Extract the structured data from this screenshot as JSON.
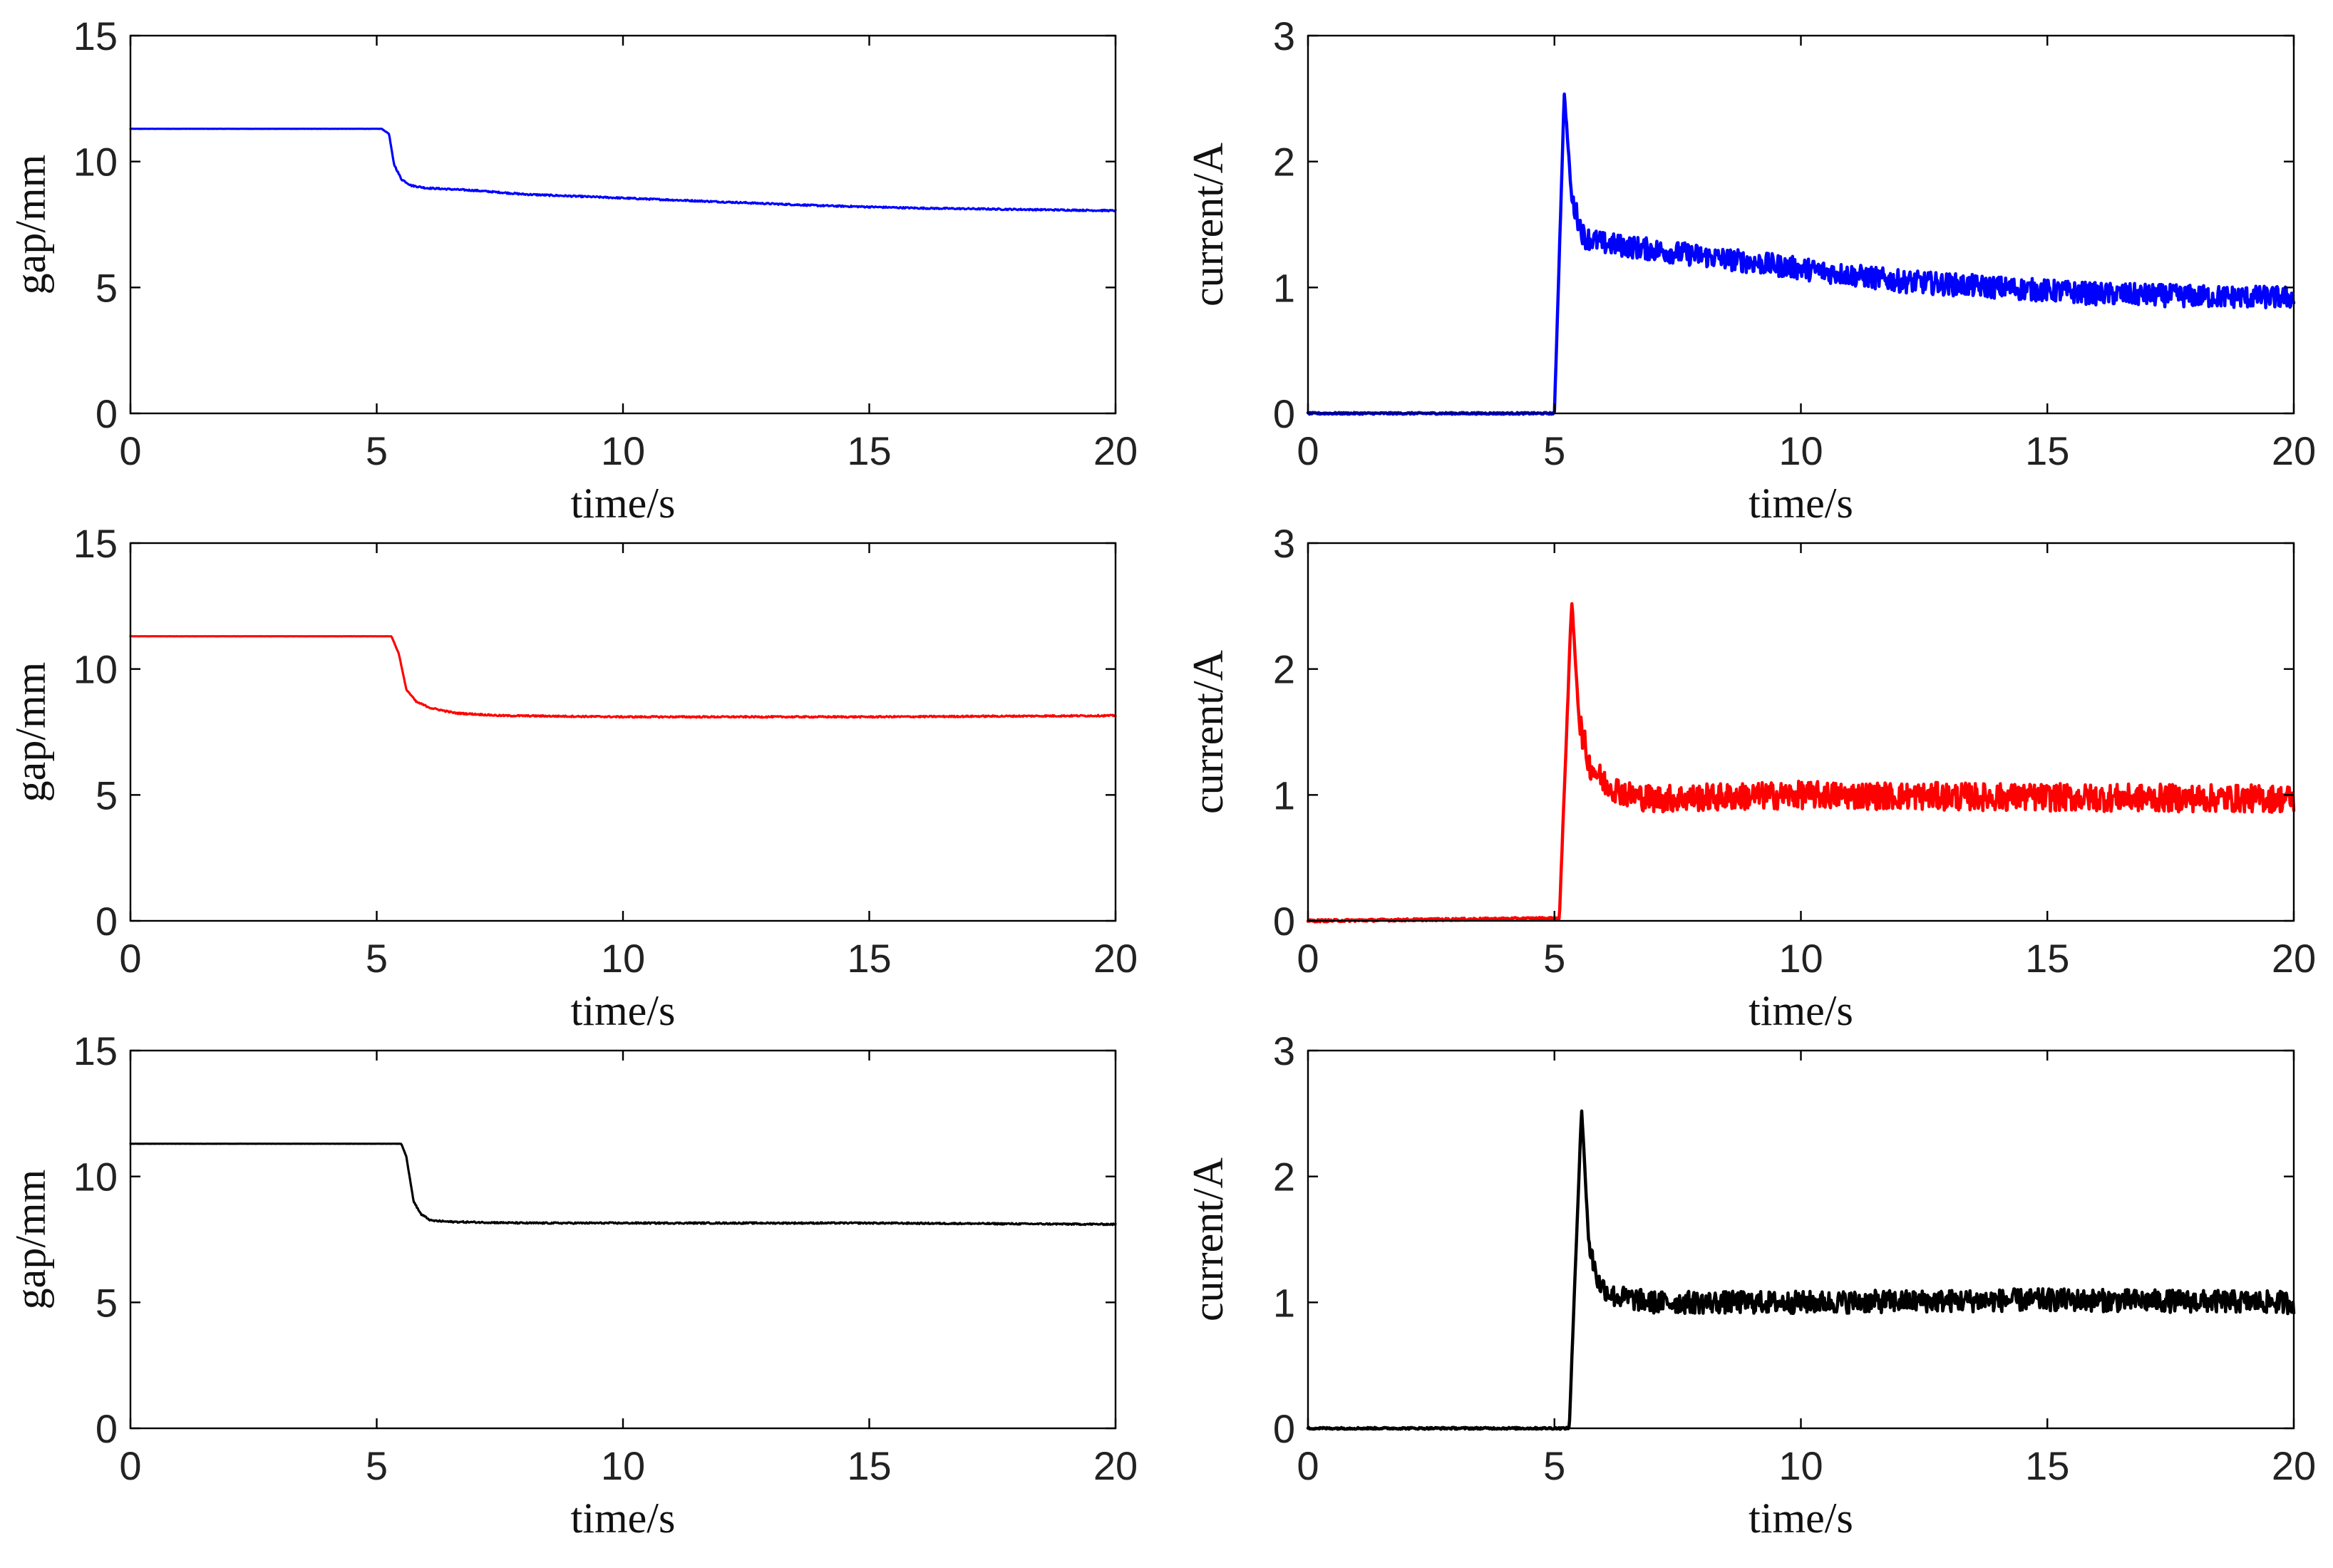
{
  "chart_data": [
    {
      "type": "line",
      "panel": "gap-blue",
      "xlabel": "time/s",
      "ylabel": "gap/mm",
      "xlim": [
        0,
        20
      ],
      "ylim": [
        0,
        15
      ],
      "xticks": [
        "0",
        "5",
        "10",
        "15",
        "20"
      ],
      "yticks": [
        "0",
        "5",
        "10",
        "15"
      ],
      "color": "#0000ff",
      "noise": 0.03,
      "series": [
        {
          "name": "gap",
          "x": [
            0,
            5.1,
            5.25,
            5.35,
            5.5,
            5.7,
            6.0,
            7.0,
            8.0,
            10.0,
            12.0,
            14.0,
            16.0,
            18.0,
            20.0
          ],
          "y": [
            11.3,
            11.3,
            11.1,
            9.9,
            9.3,
            9.05,
            8.95,
            8.85,
            8.7,
            8.55,
            8.4,
            8.25,
            8.15,
            8.1,
            8.05
          ]
        }
      ]
    },
    {
      "type": "line",
      "panel": "current-blue",
      "xlabel": "time/s",
      "ylabel": "current/A",
      "xlim": [
        0,
        20
      ],
      "ylim": [
        0,
        3
      ],
      "xticks": [
        "0",
        "5",
        "10",
        "15",
        "20"
      ],
      "yticks": [
        "0",
        "1",
        "2",
        "3"
      ],
      "color": "#0000ff",
      "noise": 0.09,
      "series": [
        {
          "name": "current",
          "x": [
            0,
            5.0,
            5.2,
            5.35,
            5.6,
            6.0,
            8.0,
            10.0,
            12.0,
            14.0,
            16.0,
            18.0,
            20.0
          ],
          "y": [
            0,
            0,
            2.55,
            1.7,
            1.4,
            1.35,
            1.25,
            1.15,
            1.05,
            1.0,
            0.95,
            0.93,
            0.92
          ]
        }
      ]
    },
    {
      "type": "line",
      "panel": "gap-red",
      "xlabel": "time/s",
      "ylabel": "gap/mm",
      "xlim": [
        0,
        20
      ],
      "ylim": [
        0,
        15
      ],
      "xticks": [
        "0",
        "5",
        "10",
        "15",
        "20"
      ],
      "yticks": [
        "0",
        "5",
        "10",
        "15"
      ],
      "color": "#ff0000",
      "noise": 0.03,
      "series": [
        {
          "name": "gap",
          "x": [
            0,
            5.3,
            5.45,
            5.6,
            5.8,
            6.1,
            6.6,
            7.5,
            10.0,
            15.0,
            20.0
          ],
          "y": [
            11.3,
            11.3,
            10.6,
            9.2,
            8.7,
            8.45,
            8.25,
            8.15,
            8.1,
            8.1,
            8.15
          ]
        }
      ]
    },
    {
      "type": "line",
      "panel": "current-red",
      "xlabel": "time/s",
      "ylabel": "current/A",
      "xlim": [
        0,
        20
      ],
      "ylim": [
        0,
        3
      ],
      "xticks": [
        "0",
        "5",
        "10",
        "15",
        "20"
      ],
      "yticks": [
        "0",
        "1",
        "2",
        "3"
      ],
      "color": "#ff0000",
      "noise": 0.11,
      "series": [
        {
          "name": "current",
          "x": [
            0,
            5.1,
            5.35,
            5.5,
            5.7,
            6.0,
            6.5,
            7.0,
            10.0,
            15.0,
            20.0
          ],
          "y": [
            0,
            0.02,
            2.55,
            1.6,
            1.25,
            1.1,
            1.0,
            0.97,
            1.0,
            0.98,
            0.97
          ]
        }
      ]
    },
    {
      "type": "line",
      "panel": "gap-black",
      "xlabel": "time/s",
      "ylabel": "gap/mm",
      "xlim": [
        0,
        20
      ],
      "ylim": [
        0,
        15
      ],
      "xticks": [
        "0",
        "5",
        "10",
        "15",
        "20"
      ],
      "yticks": [
        "0",
        "5",
        "10",
        "15"
      ],
      "color": "#000000",
      "noise": 0.03,
      "series": [
        {
          "name": "gap",
          "x": [
            0,
            5.5,
            5.6,
            5.75,
            5.9,
            6.1,
            6.5,
            8.0,
            10.0,
            15.0,
            20.0
          ],
          "y": [
            11.3,
            11.3,
            10.8,
            9.0,
            8.5,
            8.25,
            8.2,
            8.15,
            8.15,
            8.15,
            8.1
          ]
        }
      ]
    },
    {
      "type": "line",
      "panel": "current-black",
      "xlabel": "time/s",
      "ylabel": "current/A",
      "xlim": [
        0,
        20
      ],
      "ylim": [
        0,
        3
      ],
      "xticks": [
        "0",
        "5",
        "10",
        "15",
        "20"
      ],
      "yticks": [
        "0",
        "1",
        "2",
        "3"
      ],
      "color": "#000000",
      "noise": 0.09,
      "series": [
        {
          "name": "current",
          "x": [
            0,
            5.3,
            5.55,
            5.7,
            5.9,
            6.2,
            7.0,
            10.0,
            15.0,
            20.0
          ],
          "y": [
            0,
            0,
            2.55,
            1.45,
            1.15,
            1.05,
            1.0,
            1.0,
            1.02,
            1.0
          ]
        }
      ]
    }
  ]
}
